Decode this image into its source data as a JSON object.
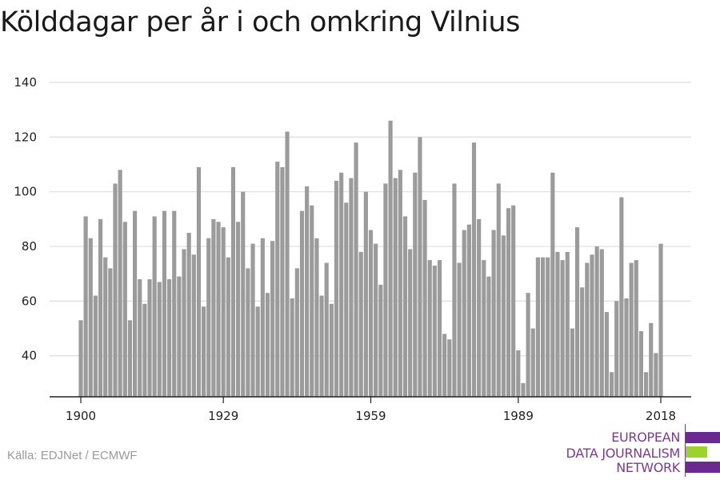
{
  "title": "Kölddagar per år i och omkring Vilnius",
  "source": "Källa: EDJNet / ECMWF",
  "logo": {
    "lines": [
      "EUROPEAN",
      "DATA JOURNALISM",
      "NETWORK"
    ],
    "colors": {
      "primary": "#6a2a8f",
      "accent": "#9bd22d"
    }
  },
  "colors": {
    "bar": "#9b9b9b",
    "grid": "#dddddd",
    "axis": "#222222"
  },
  "chart_data": {
    "type": "bar",
    "title": "Kölddagar per år i och omkring Vilnius",
    "xlabel": "",
    "ylabel": "",
    "ylim": [
      25,
      140
    ],
    "yticks": [
      40,
      60,
      80,
      100,
      120,
      140
    ],
    "xticks": [
      1900,
      1929,
      1959,
      1989,
      2018
    ],
    "grid": true,
    "x": [
      1900,
      1901,
      1902,
      1903,
      1904,
      1905,
      1906,
      1907,
      1908,
      1909,
      1910,
      1911,
      1912,
      1913,
      1914,
      1915,
      1916,
      1917,
      1918,
      1919,
      1920,
      1921,
      1922,
      1923,
      1924,
      1925,
      1926,
      1927,
      1928,
      1929,
      1930,
      1931,
      1932,
      1933,
      1934,
      1935,
      1936,
      1937,
      1938,
      1939,
      1940,
      1941,
      1942,
      1943,
      1944,
      1945,
      1946,
      1947,
      1948,
      1949,
      1950,
      1951,
      1952,
      1953,
      1954,
      1955,
      1956,
      1957,
      1958,
      1959,
      1960,
      1961,
      1962,
      1963,
      1964,
      1965,
      1966,
      1967,
      1968,
      1969,
      1970,
      1971,
      1972,
      1973,
      1974,
      1975,
      1976,
      1977,
      1978,
      1979,
      1980,
      1981,
      1982,
      1983,
      1984,
      1985,
      1986,
      1987,
      1988,
      1989,
      1990,
      1991,
      1992,
      1993,
      1994,
      1995,
      1996,
      1997,
      1998,
      1999,
      2000,
      2001,
      2002,
      2003,
      2004,
      2005,
      2006,
      2007,
      2008,
      2009,
      2010,
      2011,
      2012,
      2013,
      2014,
      2015,
      2016,
      2017,
      2018
    ],
    "values": [
      53,
      91,
      83,
      62,
      90,
      76,
      72,
      103,
      108,
      89,
      53,
      93,
      68,
      59,
      68,
      91,
      67,
      93,
      68,
      93,
      69,
      79,
      85,
      77,
      109,
      58,
      83,
      90,
      89,
      87,
      76,
      109,
      89,
      100,
      72,
      81,
      58,
      83,
      63,
      82,
      111,
      109,
      122,
      61,
      72,
      93,
      102,
      95,
      83,
      62,
      74,
      59,
      104,
      107,
      96,
      105,
      118,
      78,
      100,
      86,
      81,
      66,
      103,
      126,
      105,
      108,
      91,
      79,
      107,
      120,
      97,
      75,
      73,
      75,
      48,
      46,
      103,
      74,
      86,
      88,
      118,
      90,
      75,
      69,
      86,
      103,
      84,
      94,
      95,
      42,
      30,
      63,
      50,
      76,
      76,
      76,
      107,
      78,
      75,
      78,
      50,
      87,
      65,
      74,
      77,
      80,
      79,
      56,
      34,
      60,
      98,
      61,
      74,
      75,
      49,
      34,
      52,
      41,
      81
    ]
  }
}
